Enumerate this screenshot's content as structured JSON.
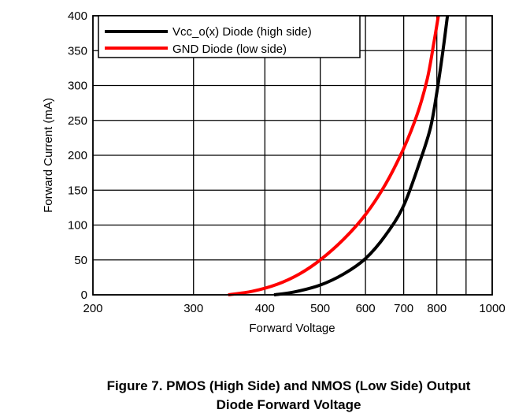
{
  "caption": {
    "line1": "Figure 7. PMOS (High Side) and NMOS (Low Side) Output",
    "line2": "Diode Forward Voltage"
  },
  "chart_data": {
    "type": "line",
    "title": "",
    "xlabel": "Forward Voltage",
    "ylabel": "Forward Current (mA)",
    "x_scale": "log",
    "xlim": [
      200,
      1000
    ],
    "ylim": [
      0,
      400
    ],
    "x_ticks": [
      200,
      300,
      400,
      500,
      600,
      700,
      800,
      1000
    ],
    "x_minor_grid": [
      900
    ],
    "y_ticks": [
      0,
      50,
      100,
      150,
      200,
      250,
      300,
      350,
      400
    ],
    "grid": true,
    "legend_position": "top-left",
    "series": [
      {
        "name": "Vcc_o(x) Diode (high side)",
        "color": "#000000",
        "x": [
          415,
          450,
          500,
          550,
          600,
          650,
          700,
          750,
          780,
          800,
          820,
          835
        ],
        "y": [
          0,
          4,
          14,
          30,
          52,
          85,
          128,
          195,
          240,
          290,
          350,
          400
        ]
      },
      {
        "name": "GND Diode (low side)",
        "color": "#ff0000",
        "x": [
          345,
          380,
          420,
          460,
          500,
          550,
          600,
          650,
          700,
          740,
          770,
          790,
          805
        ],
        "y": [
          0,
          5,
          15,
          30,
          50,
          80,
          115,
          158,
          210,
          260,
          310,
          360,
          400
        ]
      }
    ]
  }
}
